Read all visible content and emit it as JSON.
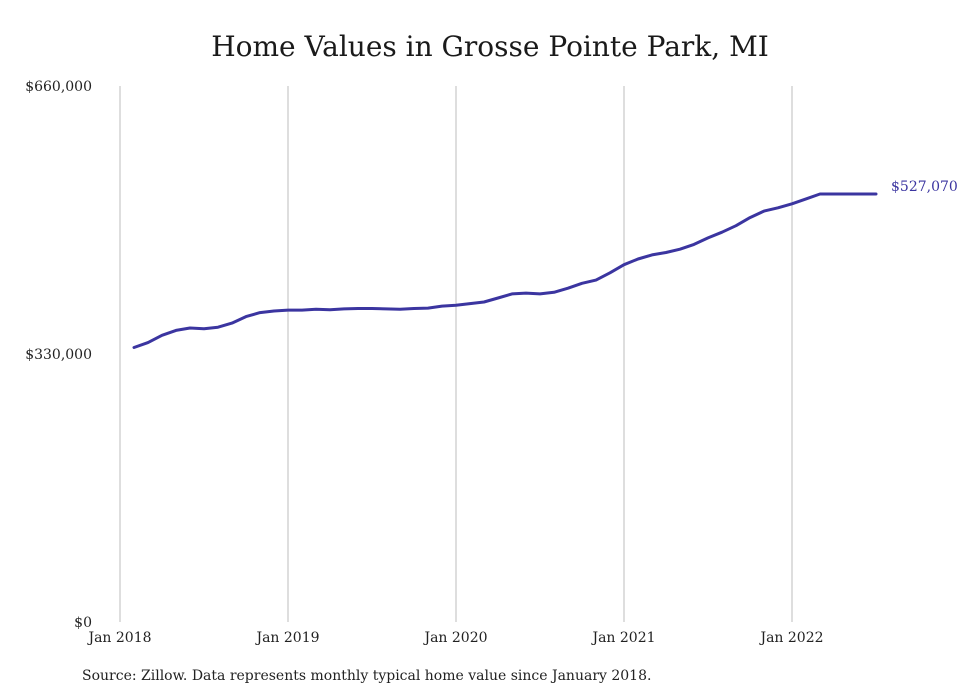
{
  "chart_data": {
    "type": "line",
    "title": "Home Values in Grosse Pointe Park, MI",
    "xlabel": "",
    "ylabel": "",
    "x_ticks": [
      "Jan 2018",
      "Jan 2019",
      "Jan 2020",
      "Jan 2021",
      "Jan 2022"
    ],
    "y_ticks": [
      "$0",
      "$330,000",
      "$660,000"
    ],
    "ylim": [
      0,
      660000
    ],
    "xlim": [
      "2018-01",
      "2022-06"
    ],
    "grid": "vertical",
    "colors": {
      "line": "#3b35a0",
      "grid": "#bdbdbd",
      "end_label": "#3b35a0"
    },
    "series": [
      {
        "x": [
          "2018-02",
          "2018-03",
          "2018-04",
          "2018-05",
          "2018-06",
          "2018-07",
          "2018-08",
          "2018-09",
          "2018-10",
          "2018-11",
          "2018-12",
          "2019-01",
          "2019-02",
          "2019-03",
          "2019-04",
          "2019-05",
          "2019-06",
          "2019-07",
          "2019-08",
          "2019-09",
          "2019-10",
          "2019-11",
          "2019-12",
          "2020-01",
          "2020-02",
          "2020-03",
          "2020-04",
          "2020-05",
          "2020-06",
          "2020-07",
          "2020-08",
          "2020-09",
          "2020-10",
          "2020-11",
          "2020-12",
          "2021-01",
          "2021-02",
          "2021-03",
          "2021-04",
          "2021-05",
          "2021-06",
          "2021-07",
          "2021-08",
          "2021-09",
          "2021-10",
          "2021-11",
          "2021-12",
          "2022-01",
          "2022-02",
          "2022-03",
          "2022-04",
          "2022-05",
          "2022-06",
          "2022-07"
        ],
        "values": [
          338000,
          344000,
          353000,
          359000,
          362000,
          361000,
          363000,
          368000,
          376000,
          381000,
          383000,
          384000,
          384000,
          385000,
          384500,
          385500,
          386000,
          386000,
          385500,
          385000,
          386000,
          386500,
          389000,
          390000,
          392000,
          394000,
          399000,
          404000,
          405000,
          404000,
          406000,
          411000,
          417000,
          421000,
          430000,
          440000,
          447000,
          452000,
          455000,
          459000,
          465000,
          473000,
          480000,
          488000,
          498000,
          506000,
          510000,
          515000,
          521000,
          527000,
          527000,
          527070,
          527070,
          527070
        ],
        "end_label": "$527,070"
      }
    ]
  },
  "footer": {
    "source": "Source: Zillow. Data represents monthly typical home value since January 2018."
  }
}
